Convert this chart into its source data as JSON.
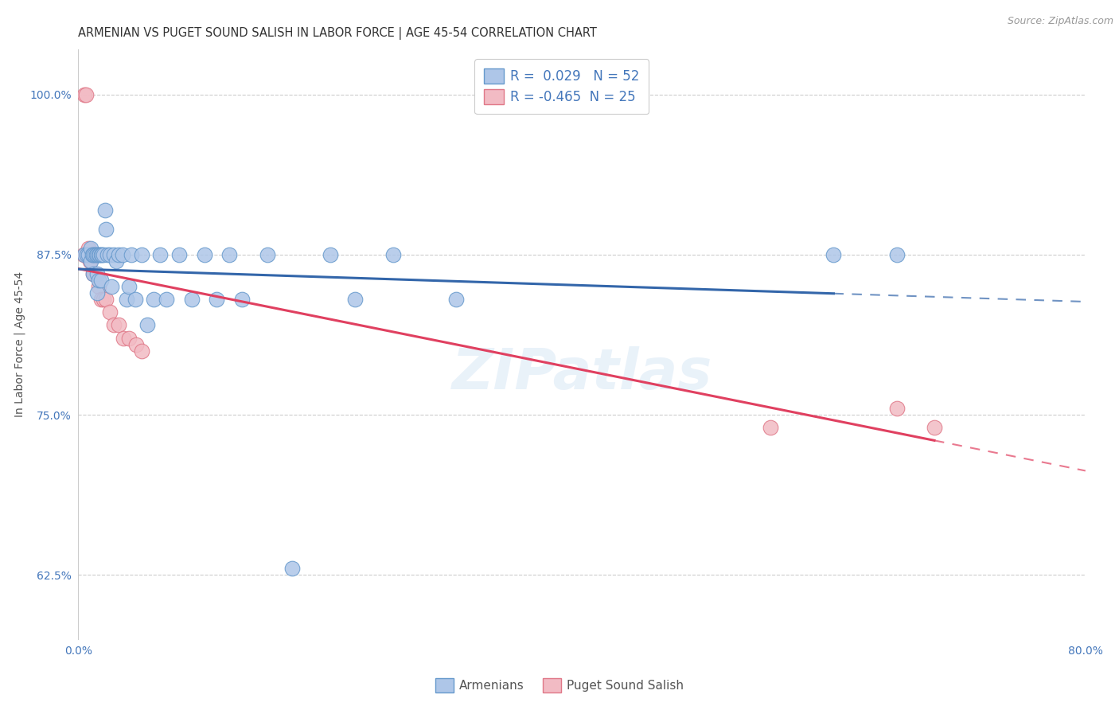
{
  "title": "ARMENIAN VS PUGET SOUND SALISH IN LABOR FORCE | AGE 45-54 CORRELATION CHART",
  "source_text": "Source: ZipAtlas.com",
  "xlabel": "",
  "ylabel": "In Labor Force | Age 45-54",
  "xlim": [
    0.0,
    0.8
  ],
  "ylim": [
    0.575,
    1.035
  ],
  "xticks": [
    0.0,
    0.1,
    0.2,
    0.3,
    0.4,
    0.5,
    0.6,
    0.7,
    0.8
  ],
  "xticklabels": [
    "0.0%",
    "",
    "",
    "",
    "",
    "",
    "",
    "",
    "80.0%"
  ],
  "yticks": [
    0.625,
    0.75,
    0.875,
    1.0
  ],
  "yticklabels": [
    "62.5%",
    "75.0%",
    "87.5%",
    "100.0%"
  ],
  "grid_color": "#cccccc",
  "background_color": "#ffffff",
  "armenian_color": "#aec6e8",
  "armenian_edge_color": "#6699cc",
  "salish_color": "#f2bbc4",
  "salish_edge_color": "#e07888",
  "armenian_line_color": "#3366aa",
  "salish_line_color": "#e04060",
  "R_armenian": 0.029,
  "N_armenian": 52,
  "R_salish": -0.465,
  "N_salish": 25,
  "legend_label_armenian": "Armenians",
  "legend_label_salish": "Puget Sound Salish",
  "armenian_x": [
    0.005,
    0.007,
    0.008,
    0.01,
    0.01,
    0.011,
    0.012,
    0.012,
    0.013,
    0.014,
    0.015,
    0.015,
    0.015,
    0.016,
    0.016,
    0.017,
    0.018,
    0.018,
    0.019,
    0.02,
    0.021,
    0.022,
    0.023,
    0.025,
    0.026,
    0.028,
    0.03,
    0.032,
    0.035,
    0.038,
    0.04,
    0.042,
    0.045,
    0.05,
    0.055,
    0.06,
    0.065,
    0.07,
    0.08,
    0.09,
    0.1,
    0.11,
    0.12,
    0.13,
    0.15,
    0.17,
    0.2,
    0.22,
    0.25,
    0.3,
    0.6,
    0.65
  ],
  "armenian_y": [
    0.875,
    0.875,
    0.875,
    0.88,
    0.87,
    0.875,
    0.875,
    0.86,
    0.875,
    0.875,
    0.875,
    0.86,
    0.845,
    0.875,
    0.855,
    0.875,
    0.875,
    0.855,
    0.875,
    0.875,
    0.91,
    0.895,
    0.875,
    0.875,
    0.85,
    0.875,
    0.87,
    0.875,
    0.875,
    0.84,
    0.85,
    0.875,
    0.84,
    0.875,
    0.82,
    0.84,
    0.875,
    0.84,
    0.875,
    0.84,
    0.875,
    0.84,
    0.875,
    0.84,
    0.875,
    0.63,
    0.875,
    0.84,
    0.875,
    0.84,
    0.875,
    0.875
  ],
  "salish_x": [
    0.004,
    0.005,
    0.006,
    0.007,
    0.008,
    0.009,
    0.01,
    0.011,
    0.012,
    0.013,
    0.015,
    0.016,
    0.018,
    0.02,
    0.022,
    0.025,
    0.028,
    0.032,
    0.036,
    0.04,
    0.046,
    0.05,
    0.55,
    0.65,
    0.68
  ],
  "salish_y": [
    0.875,
    1.0,
    1.0,
    0.875,
    0.88,
    0.87,
    0.875,
    0.875,
    0.86,
    0.86,
    0.875,
    0.85,
    0.84,
    0.84,
    0.84,
    0.83,
    0.82,
    0.82,
    0.81,
    0.81,
    0.805,
    0.8,
    0.74,
    0.755,
    0.74
  ],
  "watermark_text": "ZIPatlas",
  "title_fontsize": 10.5,
  "axis_label_fontsize": 10,
  "tick_fontsize": 10,
  "legend_fontsize": 12,
  "source_fontsize": 9,
  "marker_size": 180,
  "title_color": "#333333",
  "tick_color": "#4477bb",
  "ylabel_color": "#555555",
  "arm_line_x_solid_end": 0.6,
  "sal_line_x_solid_end": 0.68
}
